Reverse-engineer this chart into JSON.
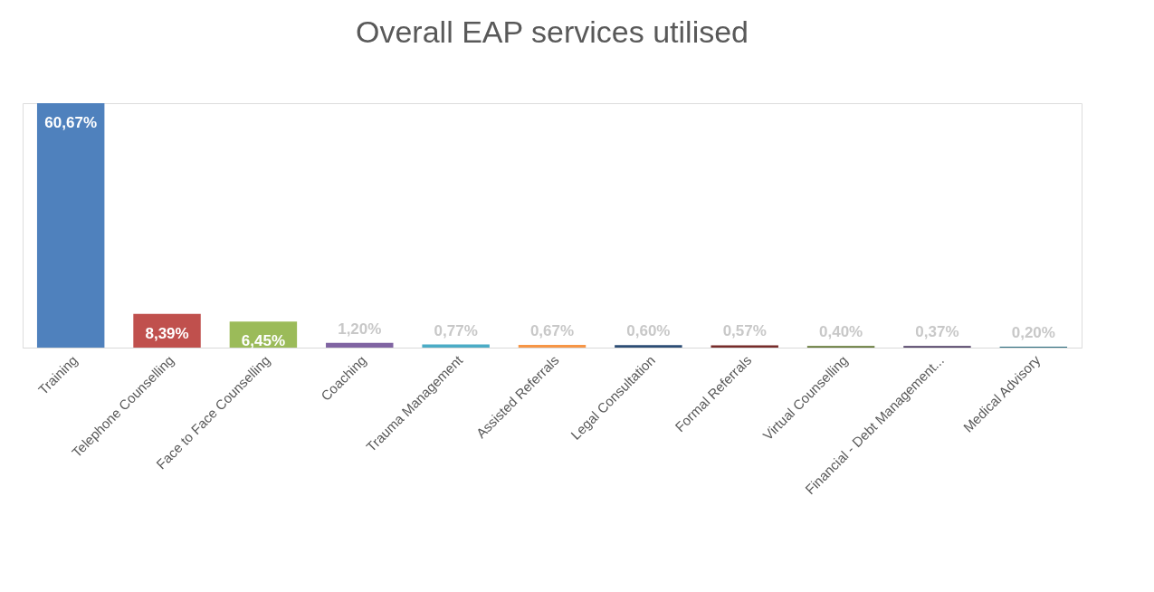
{
  "chart_data": {
    "type": "bar",
    "title": "Overall EAP services utilised",
    "categories": [
      "Training",
      "Telephone Counselling",
      "Face to Face Counselling",
      "Coaching",
      "Trauma Management",
      "Assisted Referrals",
      "Legal Consultation",
      "Formal Referrals",
      "Virtual Counselling",
      "Financial - Debt Management...",
      "Medical Advisory"
    ],
    "values": [
      60.67,
      8.39,
      6.45,
      1.2,
      0.77,
      0.67,
      0.6,
      0.57,
      0.4,
      0.37,
      0.2
    ],
    "value_labels": [
      "60,67%",
      "8,39%",
      "6,45%",
      "1,20%",
      "0,77%",
      "0,67%",
      "0,60%",
      "0,57%",
      "0,40%",
      "0,37%",
      "0,20%"
    ],
    "colors": [
      "#4f81bd",
      "#c0504d",
      "#9bbb59",
      "#8064a2",
      "#4bacc6",
      "#f79646",
      "#2c4d75",
      "#772c2a",
      "#5f7530",
      "#4d3b62",
      "#276a7c"
    ],
    "legend": false
  }
}
